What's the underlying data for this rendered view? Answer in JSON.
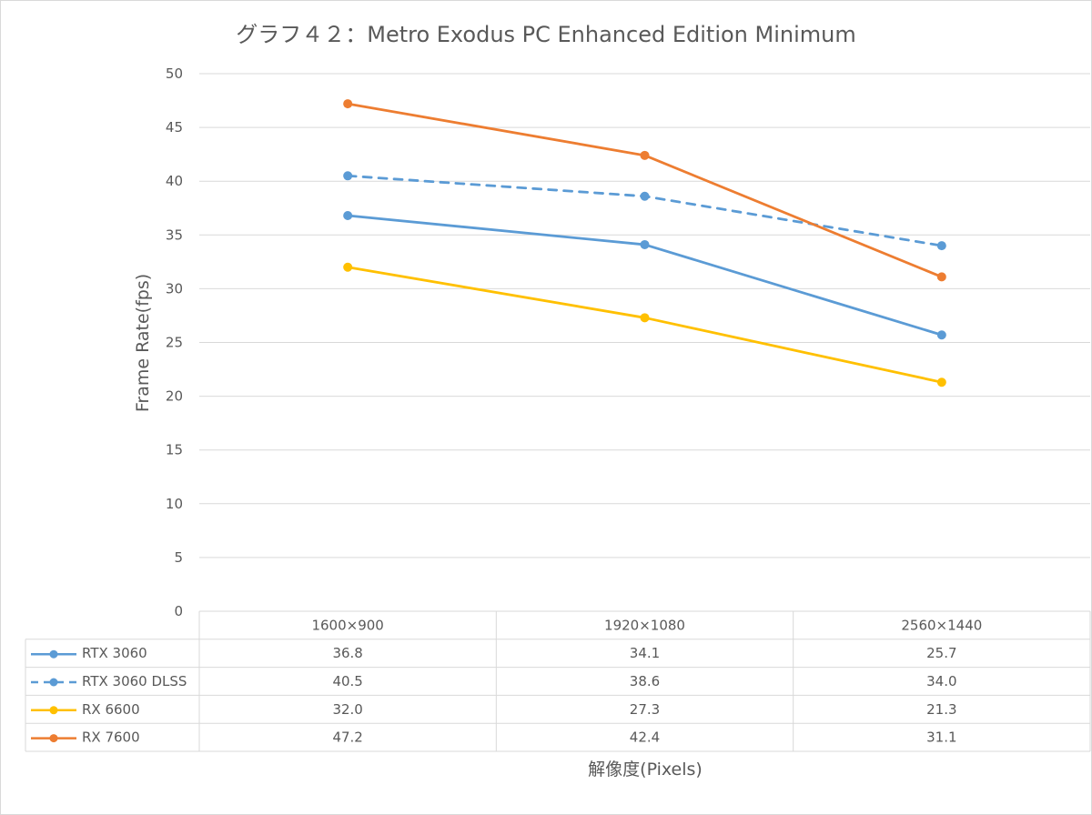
{
  "chart_data": {
    "type": "line",
    "title": "グラフ４２：Metro Exodus PC Enhanced Edition Minimum",
    "xlabel": "解像度(Pixels)",
    "ylabel": "Frame Rate(fps)",
    "ylim": [
      0,
      50
    ],
    "y_ticks": [
      "0",
      "5",
      "10",
      "15",
      "20",
      "25",
      "30",
      "35",
      "40",
      "45",
      "50"
    ],
    "grid": true,
    "legend": "data-table",
    "categories": [
      "1600×900",
      "1920×1080",
      "2560×1440"
    ],
    "series": [
      {
        "name": "RTX 3060",
        "values": [
          36.8,
          34.1,
          25.7
        ],
        "labels": [
          "36.8",
          "34.1",
          "25.7"
        ],
        "color": "#5b9bd5",
        "dashed": false
      },
      {
        "name": "RTX 3060 DLSS",
        "values": [
          40.5,
          38.6,
          34.0
        ],
        "labels": [
          "40.5",
          "38.6",
          "34.0"
        ],
        "color": "#5b9bd5",
        "dashed": true
      },
      {
        "name": "RX 6600",
        "values": [
          32.0,
          27.3,
          21.3
        ],
        "labels": [
          "32.0",
          "27.3",
          "21.3"
        ],
        "color": "#ffc000",
        "dashed": false
      },
      {
        "name": "RX 7600",
        "values": [
          47.2,
          42.4,
          31.1
        ],
        "labels": [
          "47.2",
          "42.4",
          "31.1"
        ],
        "color": "#ed7d31",
        "dashed": false
      }
    ]
  }
}
